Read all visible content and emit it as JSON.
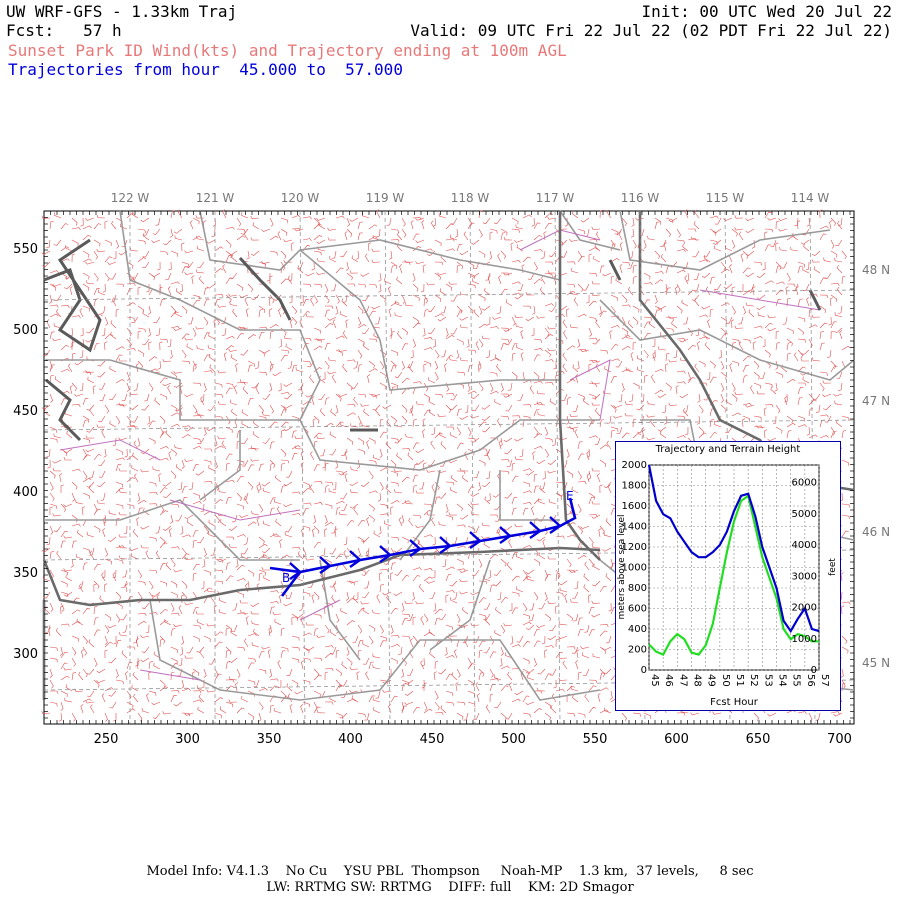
{
  "header": {
    "model": "UW WRF-GFS - 1.33km Traj",
    "init": "Init: 00 UTC Wed 20 Jul 22",
    "fcst": "Fcst:   57 h",
    "valid": "Valid: 09 UTC Fri 22 Jul 22 (02 PDT Fri 22 Jul 22)",
    "subtitle": "Sunset Park ID Wind(kts) and Trajectory ending at 100m AGL",
    "traj_range": "Trajectories from hour  45.000 to  57.000",
    "subtitle_color": "#e87878",
    "traj_color": "#0000dd"
  },
  "map": {
    "lon_labels": [
      "122 W",
      "121 W",
      "120 W",
      "119 W",
      "118 W",
      "117 W",
      "116 W",
      "115 W",
      "114 W"
    ],
    "lat_labels": [
      "48 N",
      "47 N",
      "46 N",
      "45 N"
    ],
    "x_ticks": [
      250,
      300,
      350,
      400,
      450,
      500,
      550,
      600,
      650,
      700
    ],
    "y_ticks": [
      550,
      500,
      450,
      400,
      350,
      300
    ],
    "barb_color": "#e05050",
    "trajectory": {
      "color": "#0000dd",
      "start_label": "B",
      "end_label": "E"
    }
  },
  "inset": {
    "title": "Trajectory and Terrain Height",
    "ylabel_left": "meters above sea level",
    "ylabel_right": "feet",
    "xlabel": "Fcst Hour",
    "x_ticks": [
      "45",
      "46",
      "47",
      "48",
      "49",
      "50",
      "51",
      "52",
      "53",
      "54",
      "55",
      "56",
      "57"
    ],
    "y_left_ticks": [
      "0",
      "200",
      "400",
      "600",
      "800",
      "1000",
      "1200",
      "1400",
      "1600",
      "1800",
      "2000"
    ],
    "y_right_ticks": [
      "0",
      "1000",
      "2000",
      "3000",
      "4000",
      "5000",
      "6000"
    ],
    "trajectory_color": "#0000cc",
    "terrain_color": "#22dd22"
  },
  "chart_data": {
    "type": "line",
    "title": "Trajectory and Terrain Height",
    "xlabel": "Fcst Hour",
    "ylabel": "meters above sea level",
    "xlim": [
      45,
      57
    ],
    "ylim": [
      0,
      2000
    ],
    "x": [
      45,
      45.5,
      46,
      46.5,
      47,
      47.5,
      48,
      48.5,
      49,
      49.5,
      50,
      50.5,
      51,
      51.5,
      52,
      52.5,
      53,
      53.5,
      54,
      54.5,
      55,
      55.5,
      56,
      56.5,
      57
    ],
    "series": [
      {
        "values": [
          2000,
          1650,
          1520,
          1480,
          1350,
          1250,
          1150,
          1100,
          1100,
          1150,
          1220,
          1350,
          1550,
          1700,
          1720,
          1500,
          1200,
          1000,
          800,
          480,
          380,
          500,
          600,
          400,
          380
        ]
      },
      {
        "values": [
          250,
          180,
          150,
          280,
          350,
          300,
          170,
          150,
          240,
          450,
          800,
          1150,
          1450,
          1650,
          1700,
          1400,
          1100,
          900,
          700,
          400,
          300,
          350,
          330,
          280,
          280
        ]
      }
    ]
  },
  "footer": {
    "line1": "Model Info: V4.1.3    No Cu    YSU PBL  Thompson     Noah-MP    1.3 km,  37 levels,     8 sec",
    "line2": "LW: RRTMG SW: RRTMG    DIFF: full    KM: 2D Smagor"
  }
}
